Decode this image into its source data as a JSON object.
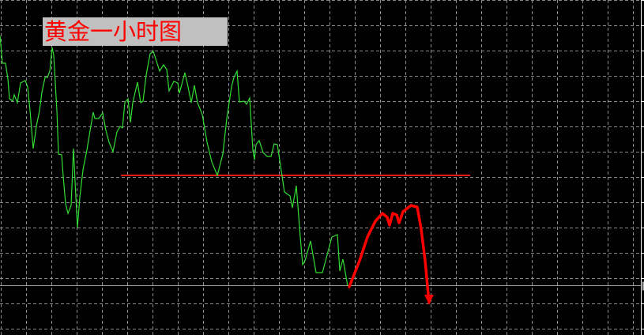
{
  "chart_data": {
    "type": "line",
    "title": "黄金一小时图",
    "xlabel": "",
    "ylabel": "",
    "grid": true,
    "xlim": [
      0,
      407.5
    ],
    "ylim": [
      -8,
      416
    ],
    "grid_step_x": 16,
    "grid_step_y": 32,
    "colors": {
      "background": "#000000",
      "grid": "#8a8a8a",
      "price": "#33dd33",
      "level": "#ff1a1a",
      "forecast": "#ff0000",
      "title_bg": "#c0c0c0",
      "title_text": "#ff0000",
      "current_price_line": "#9a9a9a"
    },
    "series": [
      {
        "kind": "price",
        "points": [
          [
            0,
            371
          ],
          [
            1.5,
            336
          ],
          [
            3.5,
            336
          ],
          [
            5,
            316
          ],
          [
            6,
            291
          ],
          [
            8,
            288
          ],
          [
            9,
            296
          ],
          [
            11,
            286
          ],
          [
            13,
            311
          ],
          [
            16,
            314
          ],
          [
            17.5,
            306
          ],
          [
            19,
            276
          ],
          [
            21,
            228
          ],
          [
            23,
            256
          ],
          [
            25,
            276
          ],
          [
            26.5,
            299
          ],
          [
            28.5,
            318
          ],
          [
            30,
            318
          ],
          [
            31.5,
            326
          ],
          [
            33,
            356
          ],
          [
            34,
            346
          ],
          [
            36,
            276
          ],
          [
            37,
            221
          ],
          [
            39,
            220
          ],
          [
            40,
            193
          ],
          [
            41.5,
            158
          ],
          [
            43,
            146
          ],
          [
            45,
            156
          ],
          [
            46.5,
            228
          ],
          [
            48,
            166
          ],
          [
            49,
            128
          ],
          [
            50.5,
            166
          ],
          [
            52.5,
            201
          ],
          [
            55,
            226
          ],
          [
            57,
            251
          ],
          [
            59,
            274
          ],
          [
            60,
            266
          ],
          [
            62.5,
            266
          ],
          [
            65,
            273
          ],
          [
            67,
            251
          ],
          [
            69,
            236
          ],
          [
            71.5,
            224
          ],
          [
            74,
            249
          ],
          [
            76,
            256
          ],
          [
            77.5,
            254
          ],
          [
            79,
            286
          ],
          [
            81,
            291
          ],
          [
            82.5,
            261
          ],
          [
            84,
            286
          ],
          [
            87,
            312
          ],
          [
            89,
            286
          ],
          [
            90.5,
            288
          ],
          [
            92.5,
            321
          ],
          [
            95,
            348
          ],
          [
            97,
            351
          ],
          [
            101,
            326
          ],
          [
            103.5,
            334
          ],
          [
            105.5,
            328
          ],
          [
            107,
            301
          ],
          [
            110,
            313
          ],
          [
            112.5,
            311
          ],
          [
            113.5,
            298
          ],
          [
            117,
            324
          ],
          [
            119,
            306
          ],
          [
            121,
            286
          ],
          [
            123,
            308
          ],
          [
            125,
            286
          ],
          [
            128,
            271
          ],
          [
            131,
            236
          ],
          [
            134,
            211
          ],
          [
            137.5,
            194
          ],
          [
            141,
            221
          ],
          [
            143.5,
            266
          ],
          [
            146.5,
            306
          ],
          [
            148,
            318
          ],
          [
            150,
            326
          ],
          [
            151.5,
            287
          ],
          [
            154.5,
            288
          ],
          [
            156,
            284
          ],
          [
            158,
            292
          ],
          [
            160,
            226
          ],
          [
            161,
            214
          ],
          [
            162,
            233
          ],
          [
            164,
            238
          ],
          [
            166.5,
            223
          ],
          [
            169,
            218
          ],
          [
            171.5,
            218
          ],
          [
            173.5,
            234
          ],
          [
            175.5,
            233
          ],
          [
            178.5,
            193
          ],
          [
            180,
            173
          ],
          [
            183.5,
            168
          ],
          [
            185,
            153
          ],
          [
            187.5,
            181
          ],
          [
            190,
            116
          ],
          [
            191.5,
            81
          ],
          [
            193,
            86
          ],
          [
            196.5,
            111
          ],
          [
            200,
            71
          ],
          [
            204,
            71
          ],
          [
            210,
            116
          ],
          [
            213.5,
            119
          ],
          [
            215,
            73
          ],
          [
            217,
            88
          ],
          [
            220,
            54
          ]
        ]
      },
      {
        "kind": "forecast-arrow",
        "points": [
          [
            221,
            53
          ],
          [
            227.5,
            86
          ],
          [
            232.5,
            116
          ],
          [
            237.5,
            136
          ],
          [
            242,
            146
          ],
          [
            245,
            141
          ],
          [
            246.5,
            131
          ],
          [
            248.5,
            146
          ],
          [
            251,
            144
          ],
          [
            252.5,
            134
          ],
          [
            255,
            148
          ],
          [
            260,
            156
          ],
          [
            264,
            154
          ],
          [
            266.5,
            126
          ],
          [
            269,
            86
          ],
          [
            271.5,
            33
          ]
        ]
      }
    ],
    "horizontal_level": {
      "value": 194,
      "from": 76.5,
      "to": 297.5
    },
    "current_price": 55
  }
}
